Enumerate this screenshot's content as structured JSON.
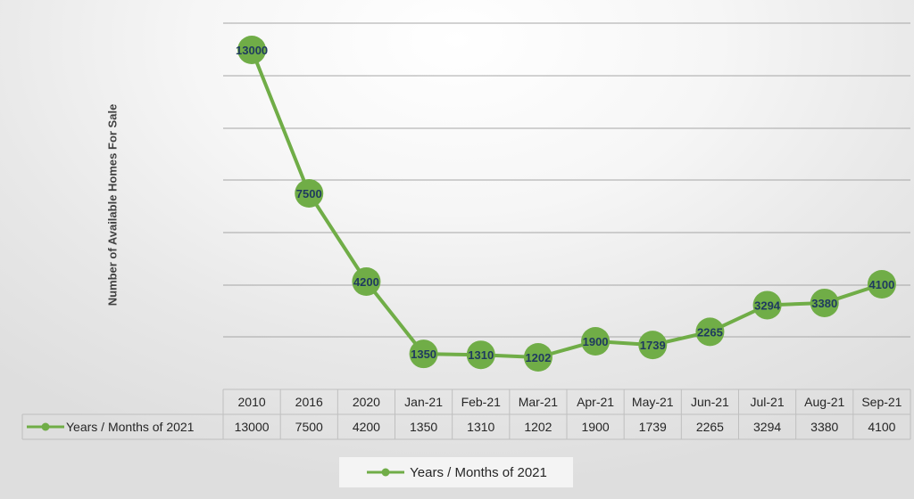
{
  "chart_data": {
    "type": "line",
    "title": "",
    "xlabel": "",
    "ylabel": "Number of Available Homes For Sale",
    "categories": [
      "2010",
      "2016",
      "2020",
      "Jan-21",
      "Feb-21",
      "Mar-21",
      "Apr-21",
      "May-21",
      "Jun-21",
      "Jul-21",
      "Aug-21",
      "Sep-21"
    ],
    "series": [
      {
        "name": "Years / Months of 2021",
        "values": [
          13000,
          7500,
          4200,
          1350,
          1310,
          1202,
          1900,
          1739,
          2265,
          3294,
          3380,
          4100
        ]
      }
    ],
    "y_scale": "nonlinear (compressed at top)",
    "grid": true,
    "data_labels": true,
    "data_table": true,
    "legend": "bottom",
    "colors": {
      "line": "#70ad47",
      "marker": "#70ad47",
      "label_text": "#1f3a5f",
      "grid": "#a6a6a6",
      "table_border": "#bfbfbf"
    }
  }
}
